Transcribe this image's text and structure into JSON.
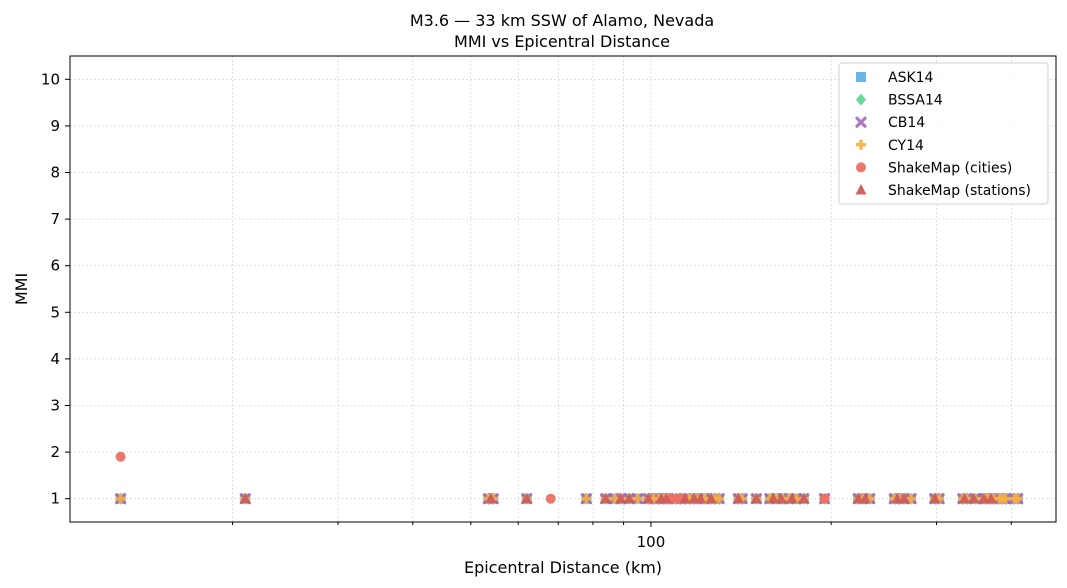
{
  "chart_data": {
    "type": "scatter",
    "title": "M3.6 — 33 km SSW of Alamo, Nevada",
    "subtitle": "MMI vs Epicentral Distance",
    "xlabel": "Epicentral Distance (km)",
    "ylabel": "MMI",
    "xscale": "log",
    "xlim": [
      10.7,
      475
    ],
    "ylim": [
      0.5,
      10.5
    ],
    "x_tick_labels": [
      {
        "value": 100,
        "label": "100"
      }
    ],
    "x_minor_ticks": [
      20,
      30,
      40,
      50,
      60,
      70,
      80,
      90,
      200,
      300,
      400
    ],
    "y_ticks": [
      1,
      2,
      3,
      4,
      5,
      6,
      7,
      8,
      9,
      10
    ],
    "y_tick_labels": [
      "1",
      "2",
      "3",
      "4",
      "5",
      "6",
      "7",
      "8",
      "9",
      "10"
    ],
    "grid": true,
    "legend_position": "top-right",
    "series": [
      {
        "name": "ASK14",
        "marker": "square",
        "color": "#5DADE2",
        "points": [
          [
            13,
            1
          ],
          [
            21,
            1
          ],
          [
            53.5,
            1
          ],
          [
            54.5,
            1
          ],
          [
            62,
            1
          ],
          [
            78,
            1
          ],
          [
            84,
            1
          ],
          [
            87,
            1
          ],
          [
            89,
            1
          ],
          [
            92,
            1
          ],
          [
            95,
            1
          ],
          [
            99,
            1
          ],
          [
            101,
            1
          ],
          [
            103,
            1
          ],
          [
            105,
            1
          ],
          [
            106,
            1
          ],
          [
            107,
            1
          ],
          [
            110,
            1
          ],
          [
            112,
            1
          ],
          [
            114,
            1
          ],
          [
            116,
            1
          ],
          [
            118,
            1
          ],
          [
            120,
            1
          ],
          [
            123,
            1
          ],
          [
            126,
            1
          ],
          [
            128,
            1
          ],
          [
            130,
            1
          ],
          [
            140,
            1
          ],
          [
            142,
            1
          ],
          [
            150,
            1
          ],
          [
            158,
            1
          ],
          [
            162,
            1
          ],
          [
            166,
            1
          ],
          [
            170,
            1
          ],
          [
            175,
            1
          ],
          [
            180,
            1
          ],
          [
            195,
            1
          ],
          [
            222,
            1
          ],
          [
            226,
            1
          ],
          [
            232,
            1
          ],
          [
            255,
            1
          ],
          [
            260,
            1
          ],
          [
            265,
            1
          ],
          [
            272,
            1
          ],
          [
            298,
            1
          ],
          [
            303,
            1
          ],
          [
            332,
            1
          ],
          [
            337,
            1
          ],
          [
            348,
            1
          ],
          [
            360,
            1
          ],
          [
            363,
            1
          ],
          [
            368,
            1
          ],
          [
            374,
            1
          ],
          [
            382,
            1
          ],
          [
            386,
            1
          ],
          [
            391,
            1
          ],
          [
            405,
            1
          ],
          [
            410,
            1
          ]
        ]
      },
      {
        "name": "BSSA14",
        "marker": "diamond",
        "color": "#58D68D",
        "points": [
          [
            13,
            1
          ],
          [
            21,
            1
          ],
          [
            53.5,
            1
          ],
          [
            54.5,
            1
          ],
          [
            62,
            1
          ],
          [
            78,
            1
          ],
          [
            84,
            1
          ],
          [
            87,
            1
          ],
          [
            89,
            1
          ],
          [
            92,
            1
          ],
          [
            95,
            1
          ],
          [
            99,
            1
          ],
          [
            101,
            1
          ],
          [
            103,
            1
          ],
          [
            105,
            1
          ],
          [
            106,
            1
          ],
          [
            107,
            1
          ],
          [
            110,
            1
          ],
          [
            112,
            1
          ],
          [
            114,
            1
          ],
          [
            116,
            1
          ],
          [
            118,
            1
          ],
          [
            120,
            1
          ],
          [
            123,
            1
          ],
          [
            126,
            1
          ],
          [
            128,
            1
          ],
          [
            130,
            1
          ],
          [
            140,
            1
          ],
          [
            142,
            1
          ],
          [
            150,
            1
          ],
          [
            158,
            1
          ],
          [
            162,
            1
          ],
          [
            166,
            1
          ],
          [
            170,
            1
          ],
          [
            175,
            1
          ],
          [
            180,
            1
          ],
          [
            195,
            1
          ],
          [
            222,
            1
          ],
          [
            226,
            1
          ],
          [
            232,
            1
          ],
          [
            255,
            1
          ],
          [
            260,
            1
          ],
          [
            265,
            1
          ],
          [
            272,
            1
          ],
          [
            298,
            1
          ],
          [
            303,
            1
          ],
          [
            332,
            1
          ],
          [
            337,
            1
          ],
          [
            348,
            1
          ],
          [
            360,
            1
          ],
          [
            363,
            1
          ],
          [
            368,
            1
          ],
          [
            374,
            1
          ],
          [
            382,
            1
          ],
          [
            386,
            1
          ],
          [
            391,
            1
          ],
          [
            405,
            1
          ],
          [
            410,
            1
          ]
        ]
      },
      {
        "name": "CB14",
        "marker": "x",
        "color": "#A569BD",
        "points": [
          [
            13,
            1
          ],
          [
            21,
            1
          ],
          [
            53.5,
            1
          ],
          [
            54.5,
            1
          ],
          [
            62,
            1
          ],
          [
            78,
            1
          ],
          [
            84,
            1
          ],
          [
            87,
            1
          ],
          [
            89,
            1
          ],
          [
            92,
            1
          ],
          [
            95,
            1
          ],
          [
            99,
            1
          ],
          [
            101,
            1
          ],
          [
            103,
            1
          ],
          [
            105,
            1
          ],
          [
            106,
            1
          ],
          [
            107,
            1
          ],
          [
            110,
            1
          ],
          [
            112,
            1
          ],
          [
            114,
            1
          ],
          [
            116,
            1
          ],
          [
            118,
            1
          ],
          [
            120,
            1
          ],
          [
            123,
            1
          ],
          [
            126,
            1
          ],
          [
            128,
            1
          ],
          [
            130,
            1
          ],
          [
            140,
            1
          ],
          [
            142,
            1
          ],
          [
            150,
            1
          ],
          [
            158,
            1
          ],
          [
            162,
            1
          ],
          [
            166,
            1
          ],
          [
            170,
            1
          ],
          [
            175,
            1
          ],
          [
            180,
            1
          ],
          [
            195,
            1
          ],
          [
            222,
            1
          ],
          [
            226,
            1
          ],
          [
            232,
            1
          ],
          [
            255,
            1
          ],
          [
            260,
            1
          ],
          [
            265,
            1
          ],
          [
            272,
            1
          ],
          [
            298,
            1
          ],
          [
            303,
            1
          ],
          [
            332,
            1
          ],
          [
            337,
            1
          ],
          [
            348,
            1
          ],
          [
            360,
            1
          ],
          [
            363,
            1
          ],
          [
            368,
            1
          ],
          [
            374,
            1
          ],
          [
            382,
            1
          ],
          [
            386,
            1
          ],
          [
            391,
            1
          ],
          [
            405,
            1
          ],
          [
            410,
            1
          ]
        ]
      },
      {
        "name": "CY14",
        "marker": "plus",
        "color": "#F5B041",
        "points": [
          [
            13,
            1
          ],
          [
            21,
            1
          ],
          [
            53.5,
            1
          ],
          [
            54.5,
            1
          ],
          [
            62,
            1
          ],
          [
            78,
            1
          ],
          [
            84,
            1
          ],
          [
            87,
            1
          ],
          [
            89,
            1
          ],
          [
            92,
            1
          ],
          [
            95,
            1
          ],
          [
            99,
            1
          ],
          [
            101,
            1
          ],
          [
            103,
            1
          ],
          [
            105,
            1
          ],
          [
            106,
            1
          ],
          [
            107,
            1
          ],
          [
            110,
            1
          ],
          [
            112,
            1
          ],
          [
            114,
            1
          ],
          [
            116,
            1
          ],
          [
            118,
            1
          ],
          [
            120,
            1
          ],
          [
            123,
            1
          ],
          [
            126,
            1
          ],
          [
            128,
            1
          ],
          [
            130,
            1
          ],
          [
            140,
            1
          ],
          [
            142,
            1
          ],
          [
            150,
            1
          ],
          [
            158,
            1
          ],
          [
            162,
            1
          ],
          [
            166,
            1
          ],
          [
            170,
            1
          ],
          [
            175,
            1
          ],
          [
            180,
            1
          ],
          [
            195,
            1
          ],
          [
            222,
            1
          ],
          [
            226,
            1
          ],
          [
            232,
            1
          ],
          [
            255,
            1
          ],
          [
            260,
            1
          ],
          [
            265,
            1
          ],
          [
            272,
            1
          ],
          [
            298,
            1
          ],
          [
            303,
            1
          ],
          [
            332,
            1
          ],
          [
            337,
            1
          ],
          [
            348,
            1
          ],
          [
            360,
            1
          ],
          [
            363,
            1
          ],
          [
            368,
            1
          ],
          [
            374,
            1
          ],
          [
            382,
            1
          ],
          [
            386,
            1
          ],
          [
            391,
            1
          ],
          [
            405,
            1
          ],
          [
            410,
            1
          ]
        ]
      },
      {
        "name": "ShakeMap (cities)",
        "marker": "circle",
        "color": "#EC7063",
        "points": [
          [
            13,
            1.9
          ],
          [
            68,
            1
          ],
          [
            108,
            1
          ],
          [
            111,
            1
          ],
          [
            113,
            1
          ],
          [
            195,
            1
          ]
        ]
      },
      {
        "name": "ShakeMap (stations)",
        "marker": "triangle",
        "color": "#CD5C5C",
        "points": [
          [
            21,
            1
          ],
          [
            54,
            1
          ],
          [
            62,
            1
          ],
          [
            84,
            1
          ],
          [
            89,
            1
          ],
          [
            92,
            1
          ],
          [
            99,
            1
          ],
          [
            104,
            1
          ],
          [
            106,
            1
          ],
          [
            114,
            1
          ],
          [
            118,
            1
          ],
          [
            121,
            1
          ],
          [
            126,
            1
          ],
          [
            140,
            1
          ],
          [
            150,
            1
          ],
          [
            160,
            1
          ],
          [
            165,
            1
          ],
          [
            172,
            1
          ],
          [
            180,
            1
          ],
          [
            222,
            1
          ],
          [
            228,
            1
          ],
          [
            258,
            1
          ],
          [
            265,
            1
          ],
          [
            298,
            1
          ],
          [
            334,
            1
          ],
          [
            346,
            1
          ],
          [
            360,
            1
          ],
          [
            370,
            1
          ]
        ]
      }
    ]
  }
}
